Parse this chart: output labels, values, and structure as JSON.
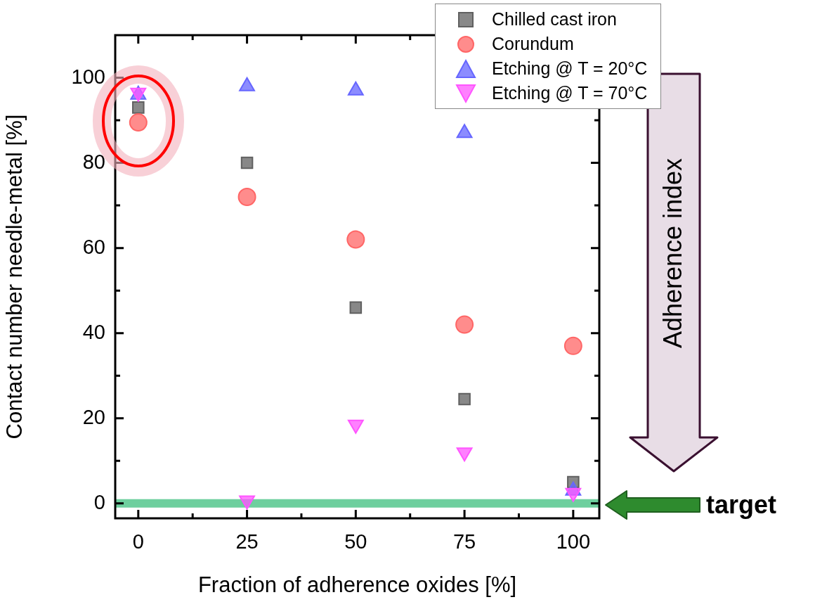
{
  "chart_data": {
    "type": "scatter",
    "xlabel": "Fraction of adherence oxides [%]",
    "ylabel": "Contact number needle-metal [%]",
    "x": [
      0,
      25,
      50,
      75,
      100
    ],
    "series": [
      {
        "name": "Chilled cast iron",
        "color": "#606060",
        "marker": "square",
        "values": [
          93,
          80,
          46,
          24.5,
          5
        ]
      },
      {
        "name": "Corundum",
        "color": "#ff6666",
        "marker": "circle",
        "values": [
          89.5,
          72,
          62,
          42,
          37
        ]
      },
      {
        "name": "Etching @ T = 20°C",
        "color": "#6666ff",
        "marker": "triangle",
        "values": [
          96,
          98,
          97,
          87,
          3
        ]
      },
      {
        "name": "Etching @ T = 70°C",
        "color": "#ff55ff",
        "marker": "triangle-down",
        "values": [
          96.5,
          0.7,
          18.5,
          12,
          2.5
        ]
      }
    ],
    "xlim": [
      -5.3,
      106
    ],
    "ylim": [
      -3.5,
      110
    ],
    "xticks": [
      0,
      {
        "value": 12.5,
        "label": null
      },
      25,
      {
        "value": 37.5,
        "label": null
      },
      50,
      {
        "value": 62.5,
        "label": null
      },
      75,
      {
        "value": 87.5,
        "label": null
      },
      100
    ],
    "yticks": [
      0,
      {
        "value": 10,
        "label": null
      },
      20,
      {
        "value": 30,
        "label": null
      },
      40,
      {
        "value": 50,
        "label": null
      },
      60,
      {
        "value": 70,
        "label": null
      },
      80,
      {
        "value": 90,
        "label": null
      },
      100
    ],
    "grid": false,
    "legend": "top right",
    "ref_lines": [
      {
        "axis": "y",
        "value": 0,
        "color": "#66cc99"
      }
    ],
    "annotations": [
      "Adherence index",
      "target"
    ]
  }
}
